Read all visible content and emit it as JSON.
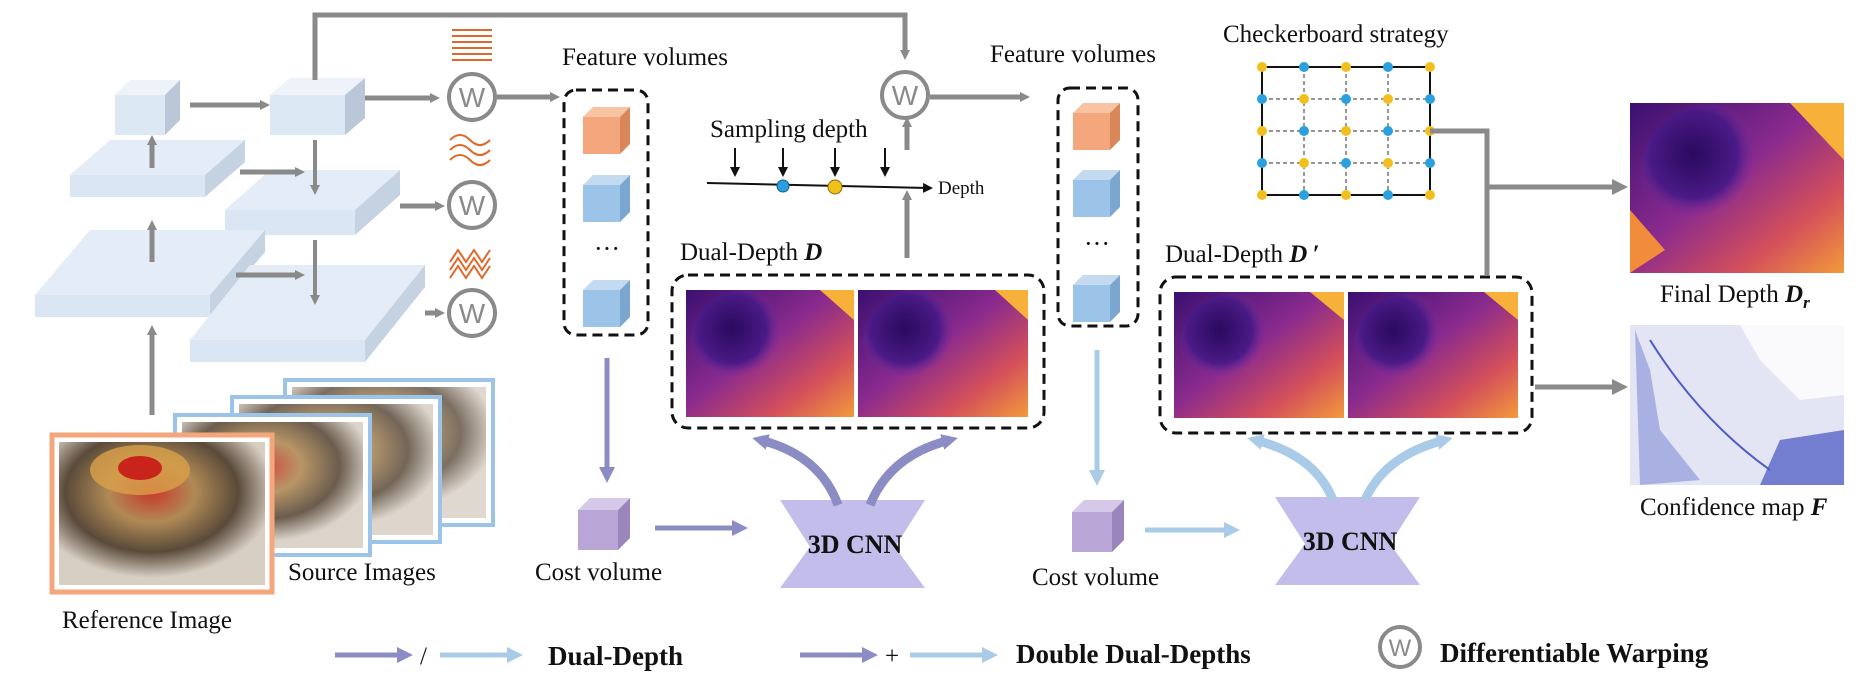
{
  "labels": {
    "feature_volumes_1": "Feature volumes",
    "feature_volumes_2": "Feature volumes",
    "sampling_depth": "Sampling depth",
    "depth_axis": "Depth",
    "checkerboard": "Checkerboard strategy",
    "dual_depth_d_prefix": "Dual-Depth ",
    "dual_depth_d_symbol": "D",
    "dual_depth_d2_prefix": "Dual-Depth ",
    "dual_depth_d2_symbol": "D ′",
    "final_depth_prefix": "Final Depth ",
    "final_depth_symbol": "D",
    "final_depth_sub": "r",
    "confidence_prefix": "Confidence map ",
    "confidence_symbol": "F",
    "cost_volume_1": "Cost volume",
    "cost_volume_2": "Cost volume",
    "cnn_1": "3D CNN",
    "cnn_2": "3D CNN",
    "source_images": "Source Images",
    "reference_image": "Reference Image",
    "ellipsis_1": "···",
    "ellipsis_2": "···"
  },
  "warp_symbol": "W",
  "legend": {
    "slash": "/",
    "plus": "+",
    "dual_depth": "Dual-Depth",
    "double_dual_depths": "Double Dual-Depths",
    "differentiable_warping": "Differentiable Warping",
    "warp_symbol": "W"
  },
  "colors": {
    "arrow_gray": "#8a8a8a",
    "arrow_dark_blue": "#8c8cc4",
    "arrow_light_blue": "#a9cbe8",
    "feature_orange": "#f4a77d",
    "feature_blue": "#9cc4e8",
    "cost_purple": "#b9a6d6",
    "cnn_purple": "#c2bdea",
    "pyramid": "#dfe9f6",
    "grid_blue_dot": "#2aa0e0",
    "grid_yellow_dot": "#f2c01c"
  }
}
